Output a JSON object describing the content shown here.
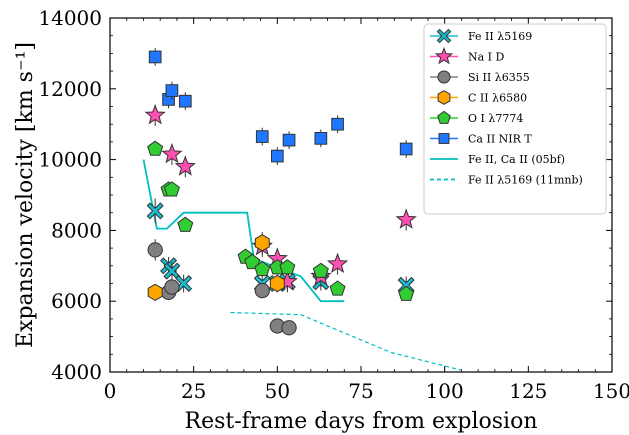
{
  "chart_data": {
    "type": "scatter",
    "xlabel": "Rest-frame days from explosion",
    "ylabel": "Expansion velocity [km s⁻¹]",
    "xlim": [
      0,
      150
    ],
    "ylim": [
      4000,
      14000
    ],
    "x_ticks": [
      "0",
      "25",
      "50",
      "75",
      "100",
      "125",
      "150"
    ],
    "y_ticks": [
      "4000",
      "6000",
      "8000",
      "10000",
      "12000",
      "14000"
    ],
    "grid": false,
    "legend_position": "top-right",
    "series": [
      {
        "name": "Fe II λ5169",
        "marker": "x-filled",
        "color": "#17becf",
        "points": [
          {
            "x": 13.5,
            "y": 8550,
            "err": 350
          },
          {
            "x": 17.5,
            "y": 7000,
            "err": 250
          },
          {
            "x": 18.5,
            "y": 6850,
            "err": 250
          },
          {
            "x": 22.0,
            "y": 6500,
            "err": 250
          },
          {
            "x": 45.5,
            "y": 6500,
            "err": 250
          },
          {
            "x": 50.0,
            "y": 6500,
            "err": 250
          },
          {
            "x": 53.0,
            "y": 6550,
            "err": 250
          },
          {
            "x": 63.0,
            "y": 6550,
            "err": 250
          },
          {
            "x": 88.5,
            "y": 6450,
            "err": 250
          }
        ]
      },
      {
        "name": "Na I D",
        "marker": "star",
        "color": "#ff4fb0",
        "points": [
          {
            "x": 13.5,
            "y": 11250,
            "err": 300
          },
          {
            "x": 18.5,
            "y": 10150,
            "err": 300
          },
          {
            "x": 22.5,
            "y": 9800,
            "err": 300
          },
          {
            "x": 45.5,
            "y": 7550,
            "err": 300
          },
          {
            "x": 50.0,
            "y": 7200,
            "err": 300
          },
          {
            "x": 53.0,
            "y": 6550,
            "err": 300
          },
          {
            "x": 63.0,
            "y": 6700,
            "err": 300
          },
          {
            "x": 68.0,
            "y": 7050,
            "err": 300
          },
          {
            "x": 88.5,
            "y": 8300,
            "err": 300
          }
        ]
      },
      {
        "name": "Si II λ6355",
        "marker": "circle",
        "color": "#808080",
        "points": [
          {
            "x": 13.5,
            "y": 7450,
            "err": 300
          },
          {
            "x": 17.5,
            "y": 6250,
            "err": 200
          },
          {
            "x": 18.5,
            "y": 6400,
            "err": 200
          },
          {
            "x": 45.5,
            "y": 6300,
            "err": 200
          },
          {
            "x": 50.0,
            "y": 5300,
            "err": 200
          },
          {
            "x": 53.5,
            "y": 5250,
            "err": 200
          }
        ]
      },
      {
        "name": "C II λ6580",
        "marker": "hexagon",
        "color": "#ffa500",
        "points": [
          {
            "x": 13.5,
            "y": 6250,
            "err": 200
          },
          {
            "x": 45.5,
            "y": 7650,
            "err": 300
          },
          {
            "x": 50.0,
            "y": 6500,
            "err": 250
          }
        ]
      },
      {
        "name": "O I λ7774",
        "marker": "pentagon",
        "color": "#32cd32",
        "points": [
          {
            "x": 13.5,
            "y": 10300,
            "err": 150
          },
          {
            "x": 17.5,
            "y": 9150,
            "err": 150
          },
          {
            "x": 18.5,
            "y": 9150,
            "err": 150
          },
          {
            "x": 22.5,
            "y": 8150,
            "err": 150
          },
          {
            "x": 40.5,
            "y": 7250,
            "err": 150
          },
          {
            "x": 42.5,
            "y": 7100,
            "err": 150
          },
          {
            "x": 45.5,
            "y": 6900,
            "err": 150
          },
          {
            "x": 50.0,
            "y": 6950,
            "err": 150
          },
          {
            "x": 53.0,
            "y": 6950,
            "err": 150
          },
          {
            "x": 63.0,
            "y": 6850,
            "err": 150
          },
          {
            "x": 68.0,
            "y": 6350,
            "err": 150
          },
          {
            "x": 88.5,
            "y": 6200,
            "err": 150
          }
        ]
      },
      {
        "name": "Ca II NIR T",
        "marker": "square",
        "color": "#1f77ff",
        "points": [
          {
            "x": 13.5,
            "y": 12900,
            "err": 250
          },
          {
            "x": 17.5,
            "y": 11700,
            "err": 250
          },
          {
            "x": 18.5,
            "y": 11950,
            "err": 250
          },
          {
            "x": 22.5,
            "y": 11650,
            "err": 250
          },
          {
            "x": 45.5,
            "y": 10650,
            "err": 250
          },
          {
            "x": 50.0,
            "y": 10100,
            "err": 250
          },
          {
            "x": 53.5,
            "y": 10550,
            "err": 250
          },
          {
            "x": 63.0,
            "y": 10600,
            "err": 250
          },
          {
            "x": 68.0,
            "y": 11000,
            "err": 250
          },
          {
            "x": 88.5,
            "y": 10300,
            "err": 250
          }
        ]
      }
    ],
    "reference_curves": [
      {
        "name": "Fe II, Ca II (05bf)",
        "style": "solid",
        "color": "#00bfbf",
        "points": [
          [
            10,
            10000
          ],
          [
            14,
            8050
          ],
          [
            17,
            8050
          ],
          [
            22,
            8500
          ],
          [
            41,
            8500
          ],
          [
            43,
            7200
          ],
          [
            57,
            6700
          ],
          [
            63,
            6000
          ],
          [
            70,
            6000
          ]
        ]
      },
      {
        "name": "Fe II λ5169 (11mnb)",
        "style": "dashed",
        "color": "#00bfbf",
        "points": [
          [
            36,
            5680
          ],
          [
            57,
            5620
          ],
          [
            84,
            4550
          ],
          [
            105,
            4050
          ]
        ]
      }
    ]
  }
}
